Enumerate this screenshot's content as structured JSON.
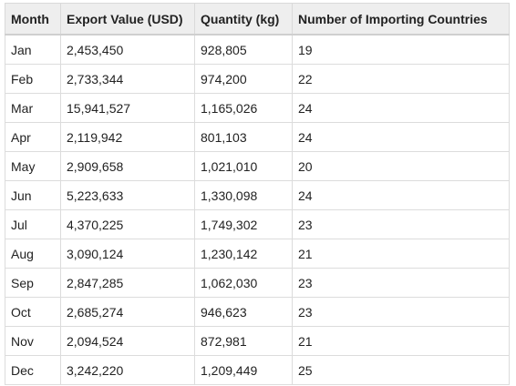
{
  "chart_data": {
    "type": "table",
    "columns": [
      "Month",
      "Export Value (USD)",
      "Quantity (kg)",
      "Number of Importing Countries"
    ],
    "rows": [
      [
        "Jan",
        "2,453,450",
        "928,805",
        "19"
      ],
      [
        "Feb",
        "2,733,344",
        "974,200",
        "22"
      ],
      [
        "Mar",
        "15,941,527",
        "1,165,026",
        "24"
      ],
      [
        "Apr",
        "2,119,942",
        "801,103",
        "24"
      ],
      [
        "May",
        "2,909,658",
        "1,021,010",
        "20"
      ],
      [
        "Jun",
        "5,223,633",
        "1,330,098",
        "24"
      ],
      [
        "Jul",
        "4,370,225",
        "1,749,302",
        "23"
      ],
      [
        "Aug",
        "3,090,124",
        "1,230,142",
        "21"
      ],
      [
        "Sep",
        "2,847,285",
        "1,062,030",
        "23"
      ],
      [
        "Oct",
        "2,685,274",
        "946,623",
        "23"
      ],
      [
        "Nov",
        "2,094,524",
        "872,981",
        "21"
      ],
      [
        "Dec",
        "3,242,220",
        "1,209,449",
        "25"
      ]
    ]
  },
  "colors": {
    "header_bg": "#eeeeee",
    "border": "#dcdcdc",
    "text": "#222222"
  }
}
